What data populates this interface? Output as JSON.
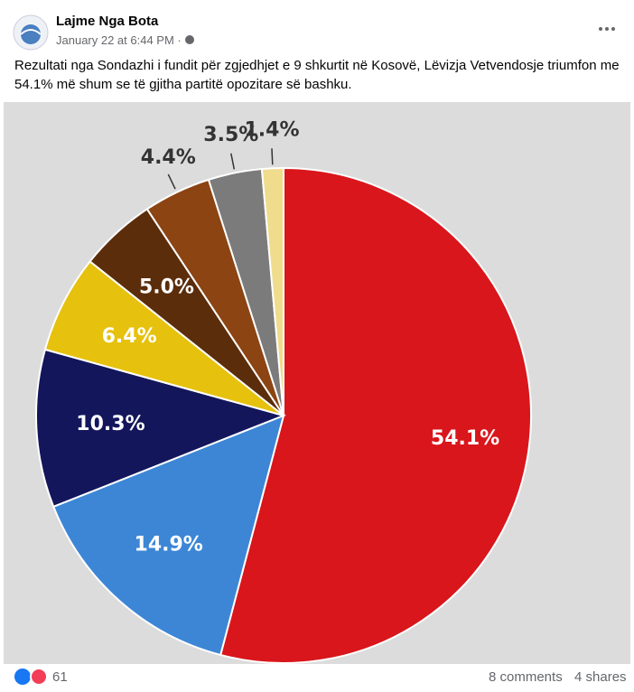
{
  "post": {
    "author": "Lajme Nga Bota",
    "timestamp": "January 22 at 6:44 PM ·",
    "text": "Rezultati nga Sondazhi i fundit për zgjedhjet e 9 shkurtit në Kosovë, Lëvizja Vetvendosje triumfon me 54.1% më shum se të gjitha partitë opozitare së bashku.",
    "reactions": "61",
    "comments": "8 comments",
    "shares": "4 shares"
  },
  "chart_data": {
    "type": "pie",
    "values": [
      54.1,
      14.9,
      10.3,
      6.4,
      5.0,
      4.4,
      3.5,
      1.4
    ],
    "value_labels": [
      "54.1%",
      "14.9%",
      "10.3%",
      "6.4%",
      "5.0%",
      "4.4%",
      "3.5%",
      "1.4%"
    ],
    "colors": [
      "#d9161b",
      "#3d86d6",
      "#14165c",
      "#e6c10d",
      "#5b2d0b",
      "#8b4412",
      "#7b7b7b",
      "#efdc8c"
    ]
  }
}
